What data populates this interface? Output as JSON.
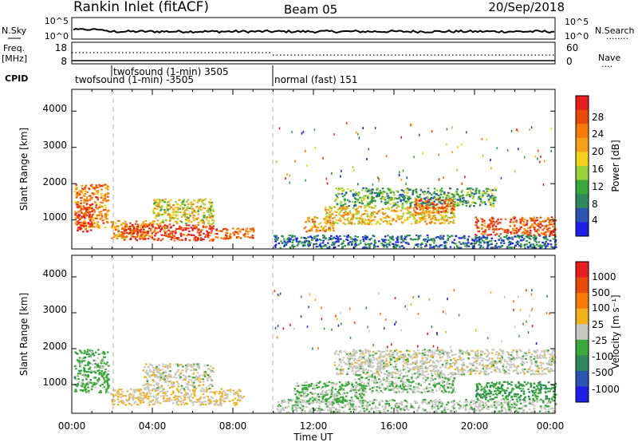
{
  "header": {
    "title": "Rankin Inlet (fitACF)",
    "beam": "Beam 05",
    "date": "20/Sep/2018"
  },
  "nsky_panel": {
    "left_label": "N.Sky",
    "left_ticks": [
      "10^5",
      "10^0"
    ],
    "right_ticks": [
      "10^5",
      "10^0"
    ],
    "right_label": "N.Search",
    "right_marker": "........"
  },
  "freq_panel": {
    "left_label_top": "Freq.",
    "left_label_bottom": "[MHz]",
    "left_ticks": [
      "18",
      "8"
    ],
    "right_ticks": [
      "60",
      "0"
    ],
    "right_label": "Nave",
    "right_marker": "...."
  },
  "cpid": {
    "label": "CPID",
    "segments": [
      {
        "text": "twofsound (1-min) 3505"
      },
      {
        "text": "twofsound (1-min) -3505"
      },
      {
        "text": "normal (fast) 151"
      }
    ]
  },
  "power_panel": {
    "ylabel": "Slant Range [km]",
    "yticks": [
      "4000",
      "3000",
      "2000",
      "1000"
    ],
    "colorbar_label": "Power [dB]",
    "colorbar_ticks": [
      "28",
      "24",
      "20",
      "16",
      "12",
      "8",
      "4"
    ],
    "colors": [
      "#1e1ee6",
      "#2a55b0",
      "#2e8a5a",
      "#3aa83a",
      "#9bd13a",
      "#f2d21a",
      "#f5a01a",
      "#f57a0a",
      "#e84a0a",
      "#e61e1e"
    ]
  },
  "velocity_panel": {
    "ylabel": "Slant Range [km]",
    "yticks": [
      "4000",
      "3000",
      "2000",
      "1000"
    ],
    "colorbar_label": "Velocity [m s⁻¹]",
    "colorbar_ticks": [
      "1000",
      "500",
      "100",
      "25",
      "-25",
      "-100",
      "-500",
      "-1000"
    ],
    "colors": [
      "#1e1ee6",
      "#2a55b0",
      "#2e8a5a",
      "#3aa83a",
      "#c8c8c0",
      "#f2b01a",
      "#f57a0a",
      "#e84a0a",
      "#e61e1e"
    ]
  },
  "xaxis": {
    "ticks": [
      "00:00",
      "04:00",
      "08:00",
      "12:00",
      "16:00",
      "20:00",
      "00:00"
    ],
    "label": "Time UT"
  },
  "chart_data": [
    {
      "type": "heatmap",
      "name": "power",
      "x_unit": "hours UT",
      "xlim": [
        0,
        24
      ],
      "ylim": [
        200,
        4600
      ],
      "clim": [
        0,
        30
      ],
      "mode_change_times": [
        1.9,
        10.0
      ],
      "regions": [
        {
          "t": [
            0.1,
            1.8
          ],
          "r": [
            800,
            2000
          ],
          "level": 22
        },
        {
          "t": [
            0.2,
            1.0
          ],
          "r": [
            700,
            1500
          ],
          "level": 28
        },
        {
          "t": [
            1.9,
            4.0
          ],
          "r": [
            500,
            1000
          ],
          "level": 20
        },
        {
          "t": [
            2.5,
            7.0
          ],
          "r": [
            450,
            900
          ],
          "level": 27
        },
        {
          "t": [
            4.0,
            7.0
          ],
          "r": [
            900,
            1600
          ],
          "level": 16
        },
        {
          "t": [
            7.0,
            9.0
          ],
          "r": [
            500,
            800
          ],
          "level": 24
        },
        {
          "t": [
            10.0,
            24.0
          ],
          "r": [
            250,
            600
          ],
          "level": 6
        },
        {
          "t": [
            11.5,
            13.0
          ],
          "r": [
            700,
            1100
          ],
          "level": 20
        },
        {
          "t": [
            12.5,
            19.0
          ],
          "r": [
            900,
            1400
          ],
          "level": 18
        },
        {
          "t": [
            13.0,
            21.0
          ],
          "r": [
            1400,
            1900
          ],
          "level": 10
        },
        {
          "t": [
            17.0,
            19.0
          ],
          "r": [
            1200,
            1600
          ],
          "level": 24
        },
        {
          "t": [
            20.0,
            24.0
          ],
          "r": [
            600,
            1100
          ],
          "level": 25
        }
      ]
    },
    {
      "type": "heatmap",
      "name": "velocity",
      "x_unit": "hours UT",
      "xlim": [
        0,
        24
      ],
      "ylim": [
        200,
        4600
      ],
      "clim": [
        -1000,
        1000
      ],
      "regions": [
        {
          "t": [
            0.1,
            1.8
          ],
          "r": [
            800,
            2000
          ],
          "level": -200
        },
        {
          "t": [
            1.9,
            8.5
          ],
          "r": [
            450,
            900
          ],
          "level": 100
        },
        {
          "t": [
            3.5,
            7.0
          ],
          "r": [
            900,
            1600
          ],
          "level": 0
        },
        {
          "t": [
            10.0,
            24.0
          ],
          "r": [
            250,
            600
          ],
          "level": -50
        },
        {
          "t": [
            11.0,
            14.5
          ],
          "r": [
            500,
            1100
          ],
          "level": -150
        },
        {
          "t": [
            13.0,
            24.0
          ],
          "r": [
            1300,
            2000
          ],
          "level": 0
        },
        {
          "t": [
            14.0,
            19.0
          ],
          "r": [
            800,
            1300
          ],
          "level": -100
        },
        {
          "t": [
            20.0,
            24.0
          ],
          "r": [
            600,
            1100
          ],
          "level": -300
        }
      ]
    }
  ]
}
